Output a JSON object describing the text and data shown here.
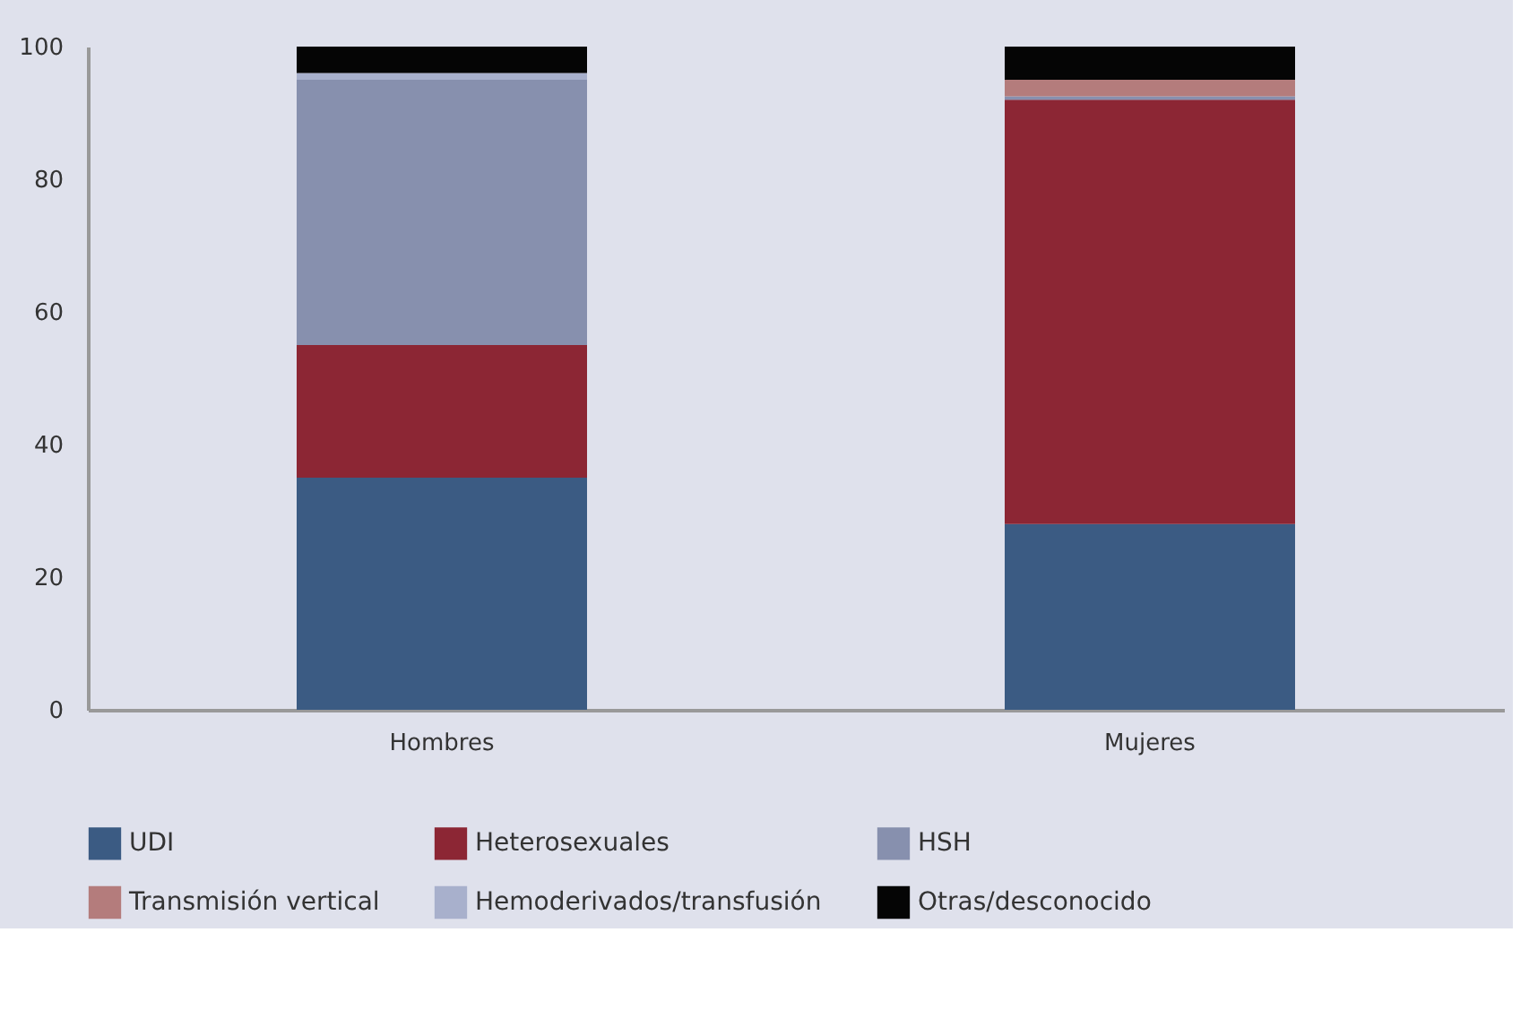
{
  "chart_data": {
    "type": "bar",
    "stacked": true,
    "categories": [
      "Hombres",
      "Mujeres"
    ],
    "series": [
      {
        "name": "UDI",
        "color": "#3b5b83",
        "values": [
          35,
          28
        ]
      },
      {
        "name": "Heterosexuales",
        "color": "#8c2634",
        "values": [
          20,
          64
        ]
      },
      {
        "name": "HSH",
        "color": "#8790ae",
        "values": [
          40,
          0.5
        ]
      },
      {
        "name": "Transmisión vertical",
        "color": "#b47c7c",
        "values": [
          0,
          2.5
        ]
      },
      {
        "name": "Hemoderivados/transfusión",
        "color": "#a8b0cc",
        "values": [
          1,
          0
        ]
      },
      {
        "name": "Otras/desconocido",
        "color": "#050505",
        "values": [
          4,
          5
        ]
      }
    ],
    "ylim": [
      0,
      100
    ],
    "yticks": [
      0,
      20,
      40,
      60,
      80,
      100
    ],
    "grid": false,
    "legend": "bottom"
  }
}
